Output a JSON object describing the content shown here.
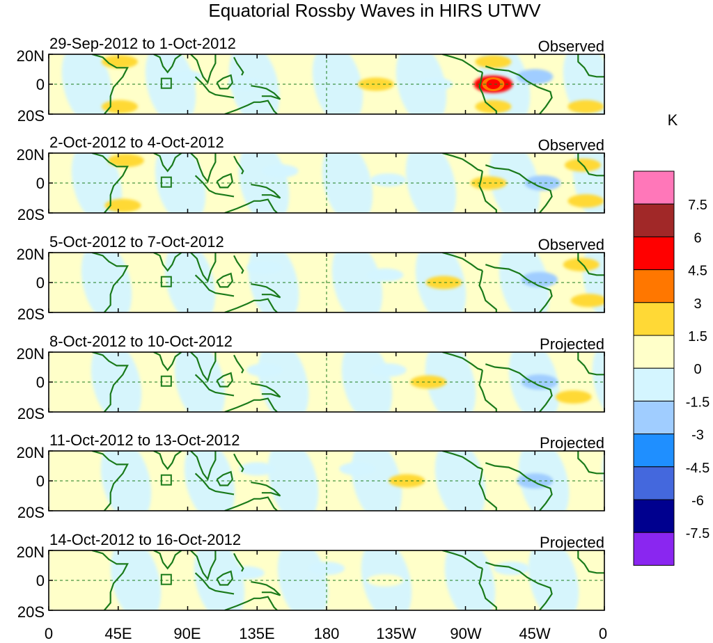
{
  "chart_data": {
    "type": "heatmap",
    "title": "Equatorial Rossby Waves in HIRS UTWV",
    "units": "K",
    "lat_tick_labels": [
      "20N",
      "0",
      "20S"
    ],
    "lon_tick_labels": [
      "0",
      "45E",
      "90E",
      "135E",
      "180",
      "135W",
      "90W",
      "45W",
      "0"
    ],
    "lon_ticks_deg": [
      0,
      45,
      90,
      135,
      180,
      225,
      270,
      315,
      360
    ],
    "lat_range": [
      -20,
      20
    ],
    "lon_range": [
      0,
      360
    ],
    "colorbar": {
      "levels": [
        "7.5",
        "6",
        "4.5",
        "3",
        "1.5",
        "0",
        "-1.5",
        "-3",
        "-4.5",
        "-6",
        "-7.5"
      ],
      "colors": [
        "#ff77b9",
        "#a12828",
        "#ff0000",
        "#ff7700",
        "#ffd936",
        "#ffffc9",
        "#d4f5ff",
        "#a0cdff",
        "#1f8fff",
        "#4468dd",
        "#00008f",
        "#8a26f0"
      ]
    },
    "panels": [
      {
        "date_range": "29-Sep-2012 to 1-Oct-2012",
        "label": "Observed",
        "anomalies": [
          {
            "lon": 288,
            "lat": 0,
            "value": 4.5
          },
          {
            "lon": 288,
            "lat": 15,
            "value": 1.5
          },
          {
            "lon": 288,
            "lat": -15,
            "value": 1.5
          },
          {
            "lon": 46,
            "lat": 15,
            "value": 1.5
          },
          {
            "lon": 46,
            "lat": -15,
            "value": 1.5
          },
          {
            "lon": 348,
            "lat": -15,
            "value": 1.5
          },
          {
            "lon": 212,
            "lat": 0,
            "value": 1.5
          },
          {
            "lon": 315,
            "lat": 5,
            "value": -3
          },
          {
            "lon": 88,
            "lat": 5,
            "value": -1.5
          },
          {
            "lon": 128,
            "lat": 0,
            "value": -1.5
          },
          {
            "lon": 250,
            "lat": 0,
            "value": -1.5
          }
        ]
      },
      {
        "date_range": "2-Oct-2012 to 4-Oct-2012",
        "label": "Observed",
        "anomalies": [
          {
            "lon": 285,
            "lat": 0,
            "value": 1.5
          },
          {
            "lon": 50,
            "lat": 15,
            "value": 1.5
          },
          {
            "lon": 48,
            "lat": -15,
            "value": 1.5
          },
          {
            "lon": 346,
            "lat": 12,
            "value": 1.5
          },
          {
            "lon": 348,
            "lat": -12,
            "value": 1.5
          },
          {
            "lon": 150,
            "lat": 8,
            "value": -1.5
          },
          {
            "lon": 320,
            "lat": 0,
            "value": -3
          },
          {
            "lon": 220,
            "lat": 2,
            "value": -1.5
          }
        ]
      },
      {
        "date_range": "5-Oct-2012 to 7-Oct-2012",
        "label": "Observed",
        "anomalies": [
          {
            "lon": 256,
            "lat": 0,
            "value": 1.5
          },
          {
            "lon": 345,
            "lat": 12,
            "value": 1.5
          },
          {
            "lon": 350,
            "lat": -12,
            "value": 1.5
          },
          {
            "lon": 140,
            "lat": 10,
            "value": -1.5
          },
          {
            "lon": 318,
            "lat": 2,
            "value": -3
          },
          {
            "lon": 218,
            "lat": 5,
            "value": -1.5
          }
        ]
      },
      {
        "date_range": "8-Oct-2012 to 10-Oct-2012",
        "label": "Projected",
        "anomalies": [
          {
            "lon": 246,
            "lat": 0,
            "value": 1.5
          },
          {
            "lon": 340,
            "lat": -10,
            "value": 1.5
          },
          {
            "lon": 318,
            "lat": 0,
            "value": -3
          },
          {
            "lon": 140,
            "lat": 8,
            "value": -1.5
          },
          {
            "lon": 220,
            "lat": 8,
            "value": -1.5
          }
        ]
      },
      {
        "date_range": "11-Oct-2012 to 13-Oct-2012",
        "label": "Projected",
        "anomalies": [
          {
            "lon": 232,
            "lat": 0,
            "value": 1.5
          },
          {
            "lon": 315,
            "lat": 0,
            "value": -3
          },
          {
            "lon": 135,
            "lat": 8,
            "value": -1.5
          },
          {
            "lon": 200,
            "lat": 8,
            "value": -1.5
          }
        ]
      },
      {
        "date_range": "14-Oct-2012 to 16-Oct-2012",
        "label": "Projected",
        "anomalies": [
          {
            "lon": 218,
            "lat": 0,
            "value": 0.8
          },
          {
            "lon": 128,
            "lat": 5,
            "value": -1.5
          },
          {
            "lon": 180,
            "lat": 8,
            "value": -1.5
          },
          {
            "lon": 300,
            "lat": 8,
            "value": -1.5
          }
        ]
      }
    ]
  }
}
